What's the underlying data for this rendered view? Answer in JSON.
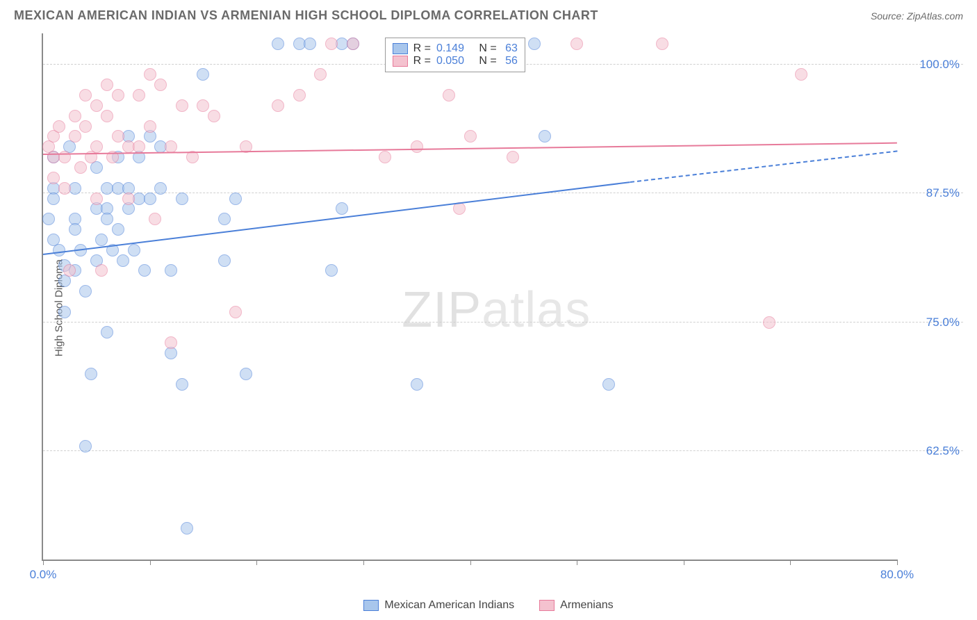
{
  "header": {
    "title": "MEXICAN AMERICAN INDIAN VS ARMENIAN HIGH SCHOOL DIPLOMA CORRELATION CHART",
    "source": "Source: ZipAtlas.com"
  },
  "chart": {
    "type": "scatter",
    "ylabel": "High School Diploma",
    "watermark_bold": "ZIP",
    "watermark_thin": "atlas",
    "xlim": [
      0,
      80
    ],
    "ylim": [
      52,
      103
    ],
    "xtick_positions": [
      0,
      10,
      20,
      30,
      40,
      50,
      60,
      70,
      80
    ],
    "xtick_labels": {
      "0": "0.0%",
      "80": "80.0%"
    },
    "ytick_positions": [
      62.5,
      75.0,
      87.5,
      100.0
    ],
    "ytick_labels": [
      "62.5%",
      "75.0%",
      "87.5%",
      "100.0%"
    ],
    "background_color": "#ffffff",
    "grid_color": "#d0d0d0",
    "axis_color": "#8a8a8a",
    "label_color": "#4a7fd8",
    "marker_radius": 9,
    "marker_opacity": 0.55,
    "series": [
      {
        "name": "Mexican American Indians",
        "color_fill": "#a8c6ec",
        "color_stroke": "#4a7fd8",
        "R": "0.149",
        "N": "63",
        "trend": {
          "x1": 0,
          "y1": 81.5,
          "x2": 55,
          "y2": 88.5,
          "dash_to_x": 80,
          "dash_to_y": 91.5
        },
        "points": [
          [
            1,
            88
          ],
          [
            1,
            87
          ],
          [
            0.5,
            85
          ],
          [
            1,
            83
          ],
          [
            1.5,
            82
          ],
          [
            2,
            80.5
          ],
          [
            2,
            79
          ],
          [
            2,
            76
          ],
          [
            1,
            91
          ],
          [
            2.5,
            92
          ],
          [
            3,
            88
          ],
          [
            3,
            85
          ],
          [
            3,
            84
          ],
          [
            3.5,
            82
          ],
          [
            3,
            80
          ],
          [
            4,
            78
          ],
          [
            4.5,
            70
          ],
          [
            4,
            63
          ],
          [
            5,
            90
          ],
          [
            5,
            86
          ],
          [
            5.5,
            83
          ],
          [
            5,
            81
          ],
          [
            6,
            88
          ],
          [
            6,
            86
          ],
          [
            6,
            85
          ],
          [
            6.5,
            82
          ],
          [
            6,
            74
          ],
          [
            7,
            91
          ],
          [
            7,
            88
          ],
          [
            7,
            84
          ],
          [
            7.5,
            81
          ],
          [
            8,
            93
          ],
          [
            8,
            88
          ],
          [
            8,
            86
          ],
          [
            8.5,
            82
          ],
          [
            9,
            91
          ],
          [
            9,
            87
          ],
          [
            9.5,
            80
          ],
          [
            10,
            93
          ],
          [
            10,
            87
          ],
          [
            11,
            92
          ],
          [
            11,
            88
          ],
          [
            12,
            80
          ],
          [
            12,
            72
          ],
          [
            13,
            87
          ],
          [
            13,
            69
          ],
          [
            13.5,
            55
          ],
          [
            15,
            99
          ],
          [
            17,
            85
          ],
          [
            17,
            81
          ],
          [
            18,
            87
          ],
          [
            19,
            70
          ],
          [
            22,
            102
          ],
          [
            24,
            102
          ],
          [
            25,
            102
          ],
          [
            27,
            80
          ],
          [
            28,
            86
          ],
          [
            28,
            102
          ],
          [
            29,
            102
          ],
          [
            35,
            69
          ],
          [
            46,
            102
          ],
          [
            47,
            93
          ],
          [
            53,
            69
          ]
        ]
      },
      {
        "name": "Armenians",
        "color_fill": "#f4c2cf",
        "color_stroke": "#e77a9a",
        "R": "0.050",
        "N": "56",
        "trend": {
          "x1": 0,
          "y1": 91.2,
          "x2": 80,
          "y2": 92.3
        },
        "points": [
          [
            0.5,
            92
          ],
          [
            1,
            93
          ],
          [
            1,
            91
          ],
          [
            1,
            89
          ],
          [
            1.5,
            94
          ],
          [
            2,
            91
          ],
          [
            2,
            88
          ],
          [
            2.5,
            80
          ],
          [
            3,
            95
          ],
          [
            3,
            93
          ],
          [
            3.5,
            90
          ],
          [
            4,
            97
          ],
          [
            4,
            94
          ],
          [
            4.5,
            91
          ],
          [
            5,
            96
          ],
          [
            5,
            92
          ],
          [
            5,
            87
          ],
          [
            5.5,
            80
          ],
          [
            6,
            98
          ],
          [
            6,
            95
          ],
          [
            6.5,
            91
          ],
          [
            7,
            97
          ],
          [
            7,
            93
          ],
          [
            8,
            92
          ],
          [
            8,
            87
          ],
          [
            9,
            97
          ],
          [
            9,
            92
          ],
          [
            10,
            99
          ],
          [
            10,
            94
          ],
          [
            10.5,
            85
          ],
          [
            11,
            98
          ],
          [
            12,
            92
          ],
          [
            12,
            73
          ],
          [
            13,
            96
          ],
          [
            14,
            91
          ],
          [
            15,
            96
          ],
          [
            16,
            95
          ],
          [
            18,
            76
          ],
          [
            19,
            92
          ],
          [
            22,
            96
          ],
          [
            24,
            97
          ],
          [
            26,
            99
          ],
          [
            27,
            102
          ],
          [
            29,
            102
          ],
          [
            32,
            91
          ],
          [
            33,
            102
          ],
          [
            35,
            92
          ],
          [
            38,
            97
          ],
          [
            39,
            86
          ],
          [
            40,
            93
          ],
          [
            42,
            102
          ],
          [
            44,
            91
          ],
          [
            50,
            102
          ],
          [
            58,
            102
          ],
          [
            68,
            75
          ],
          [
            71,
            99
          ]
        ]
      }
    ],
    "legend_top": {
      "rows": [
        {
          "swatch_fill": "#a8c6ec",
          "swatch_stroke": "#4a7fd8",
          "prefix": "R = ",
          "r_val": "0.149",
          "mid": "   N = ",
          "n_val": "63"
        },
        {
          "swatch_fill": "#f4c2cf",
          "swatch_stroke": "#e77a9a",
          "prefix": "R = ",
          "r_val": "0.050",
          "mid": "   N = ",
          "n_val": "56"
        }
      ]
    },
    "legend_bottom": [
      {
        "swatch_fill": "#a8c6ec",
        "swatch_stroke": "#4a7fd8",
        "label": "Mexican American Indians"
      },
      {
        "swatch_fill": "#f4c2cf",
        "swatch_stroke": "#e77a9a",
        "label": "Armenians"
      }
    ]
  }
}
